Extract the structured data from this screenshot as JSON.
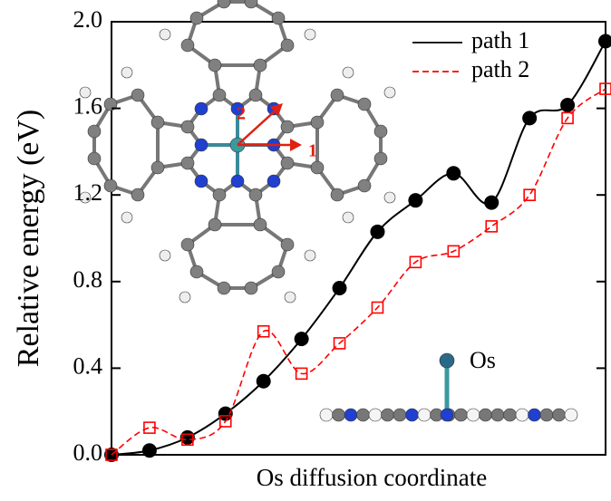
{
  "chart_data": {
    "type": "line",
    "xlabel": "Os diffusion coordinate",
    "ylabel": "Relative energy (eV)",
    "categories": [
      null,
      null,
      null,
      null,
      null,
      null,
      null,
      null,
      null,
      null,
      null,
      null,
      null,
      null
    ],
    "series": [
      {
        "name": "path 1",
        "color": "#000000",
        "values": [
          0,
          0.02,
          0.08,
          0.19,
          0.34,
          0.535,
          0.77,
          1.03,
          1.175,
          1.3,
          1.165,
          1.555,
          1.615,
          1.91
        ]
      },
      {
        "name": "path 2",
        "color": "#ff0000",
        "values": [
          0,
          0.125,
          0.07,
          0.155,
          0.57,
          0.375,
          0.515,
          0.68,
          0.89,
          0.94,
          1.055,
          1.2,
          1.555,
          1.69
        ]
      }
    ],
    "ylim": [
      0,
      2.0
    ],
    "yticks": [
      {
        "value": 0,
        "label": "0.0"
      },
      {
        "value": 0.4,
        "label": "0.4"
      },
      {
        "value": 0.8,
        "label": "0.8"
      },
      {
        "value": 1.2,
        "label": "1.2"
      },
      {
        "value": 1.6,
        "label": "1.6"
      },
      {
        "value": 2.0,
        "label": "2.0"
      }
    ],
    "legend": "upper right",
    "annotations": [
      "2",
      "1",
      "Os"
    ]
  }
}
